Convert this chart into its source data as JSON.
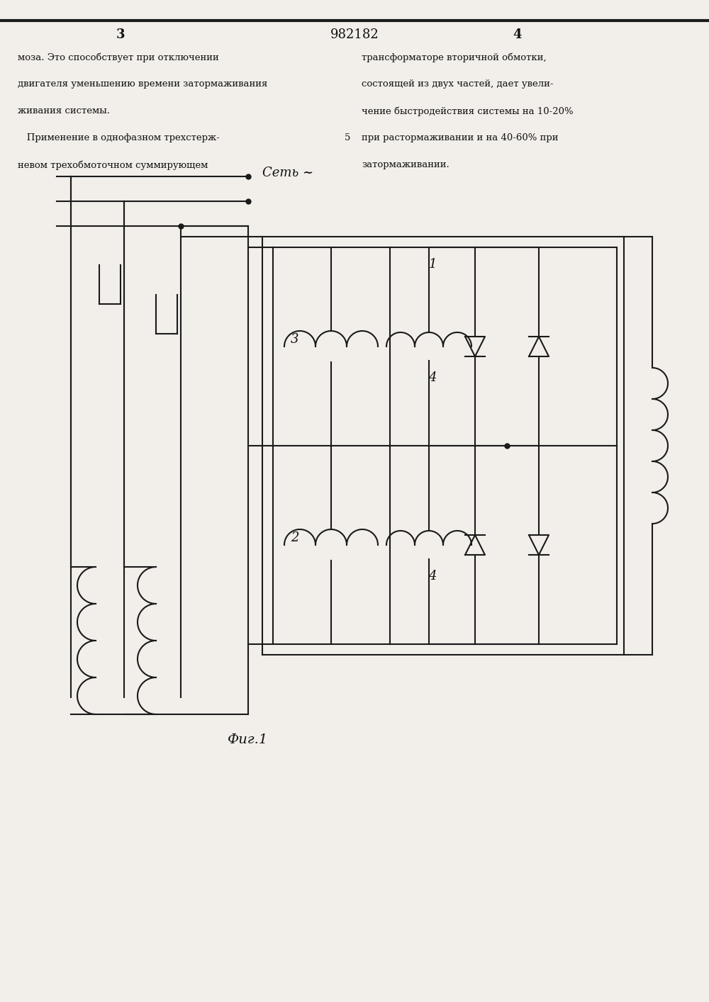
{
  "bg_color": "#f2efea",
  "line_color": "#1a1a1a",
  "text_color": "#111111",
  "page_num_left": "3",
  "page_num_center": "982182",
  "page_num_right": "4",
  "col_left_lines": [
    "моза. Это способствует при отключении",
    "двигателя уменьшению времени затормаживания",
    "живания системы.",
    "   Применение в однофазном трехстерж-",
    "невом трехобмоточном суммирующем"
  ],
  "col_right_lines": [
    "трансформаторе вторичной обмотки,",
    "состоящей из двух частей, дает увели-",
    "чение быстродействия системы на 10-20%",
    "при растормаживании и на 40-60% при",
    "затормаживании."
  ],
  "label_network": "Сеть ~",
  "label_fig": "Фиг.1",
  "label_1": "1",
  "label_2": "2",
  "label_3": "3",
  "label_4": "4",
  "lw": 1.5
}
